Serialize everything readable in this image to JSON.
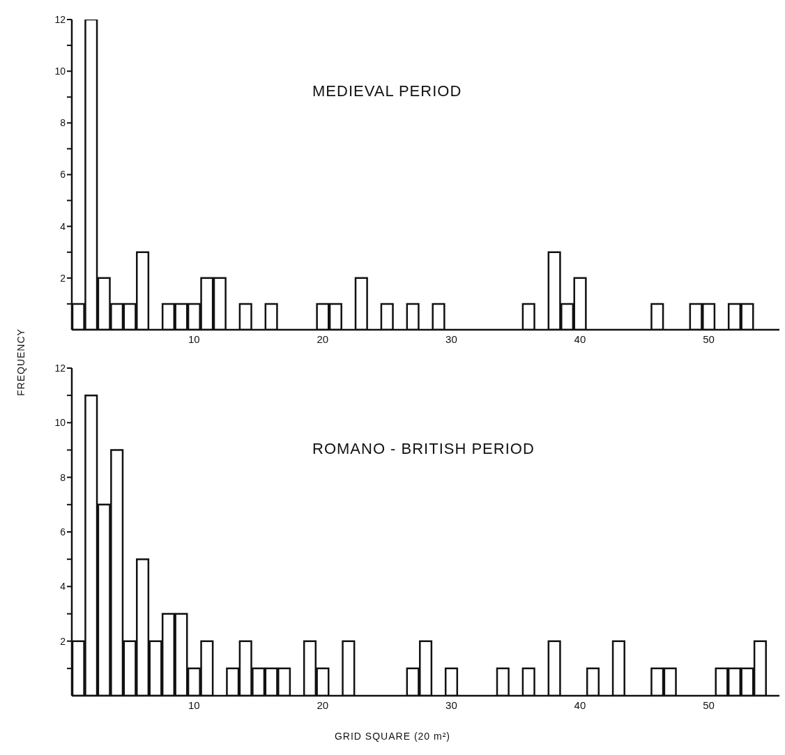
{
  "chart_data": [
    {
      "type": "bar",
      "title": "MEDIEVAL PERIOD",
      "x": [
        1,
        2,
        3,
        4,
        5,
        6,
        7,
        8,
        9,
        10,
        11,
        12,
        13,
        14,
        15,
        16,
        17,
        18,
        19,
        20,
        21,
        22,
        23,
        24,
        25,
        26,
        27,
        28,
        29,
        30,
        31,
        32,
        33,
        34,
        35,
        36,
        37,
        38,
        39,
        40,
        41,
        42,
        43,
        44,
        45,
        46,
        47,
        48,
        49,
        50,
        51,
        52,
        53,
        54
      ],
      "values": [
        1,
        12,
        2,
        1,
        1,
        3,
        0,
        1,
        1,
        1,
        2,
        2,
        0,
        1,
        0,
        1,
        0,
        0,
        0,
        1,
        1,
        0,
        2,
        0,
        1,
        0,
        1,
        0,
        1,
        0,
        0,
        0,
        0,
        0,
        0,
        1,
        0,
        3,
        1,
        2,
        0,
        0,
        0,
        0,
        0,
        1,
        0,
        0,
        1,
        1,
        0,
        1,
        1,
        0
      ],
      "color": "#ffffff",
      "xlim": [
        0.5,
        55.5
      ],
      "xticks": [
        10,
        20,
        30,
        40,
        50
      ],
      "ylim": [
        0,
        12
      ],
      "yticks": [
        {
          "value": 1,
          "label": null
        },
        2,
        {
          "value": 3,
          "label": null
        },
        4,
        {
          "value": 5,
          "label": null
        },
        6,
        {
          "value": 7,
          "label": null
        },
        8,
        {
          "value": 9,
          "label": null
        },
        10,
        {
          "value": 11,
          "label": null
        },
        12
      ]
    },
    {
      "type": "bar",
      "title": "ROMANO - BRITISH PERIOD",
      "xlabel": "GRID SQUARE (20 m²)",
      "ylabel": "FREQUENCY",
      "x": [
        1,
        2,
        3,
        4,
        5,
        6,
        7,
        8,
        9,
        10,
        11,
        12,
        13,
        14,
        15,
        16,
        17,
        18,
        19,
        20,
        21,
        22,
        23,
        24,
        25,
        26,
        27,
        28,
        29,
        30,
        31,
        32,
        33,
        34,
        35,
        36,
        37,
        38,
        39,
        40,
        41,
        42,
        43,
        44,
        45,
        46,
        47,
        48,
        49,
        50,
        51,
        52,
        53,
        54
      ],
      "values": [
        2,
        11,
        7,
        9,
        2,
        5,
        2,
        3,
        3,
        1,
        2,
        0,
        1,
        2,
        1,
        1,
        1,
        0,
        2,
        1,
        0,
        2,
        0,
        0,
        0,
        0,
        1,
        2,
        0,
        1,
        0,
        0,
        0,
        1,
        0,
        1,
        0,
        2,
        0,
        0,
        1,
        0,
        2,
        0,
        0,
        1,
        1,
        0,
        0,
        0,
        1,
        1,
        1,
        2
      ],
      "color": "#ffffff",
      "xlim": [
        0.5,
        55.5
      ],
      "xticks": [
        10,
        20,
        30,
        40,
        50
      ],
      "ylim": [
        0,
        12
      ],
      "yticks": [
        {
          "value": 1,
          "label": null
        },
        2,
        {
          "value": 3,
          "label": null
        },
        4,
        {
          "value": 5,
          "label": null
        },
        6,
        {
          "value": 7,
          "label": null
        },
        8,
        {
          "value": 9,
          "label": null
        },
        10,
        {
          "value": 11,
          "label": null
        },
        12
      ]
    }
  ]
}
